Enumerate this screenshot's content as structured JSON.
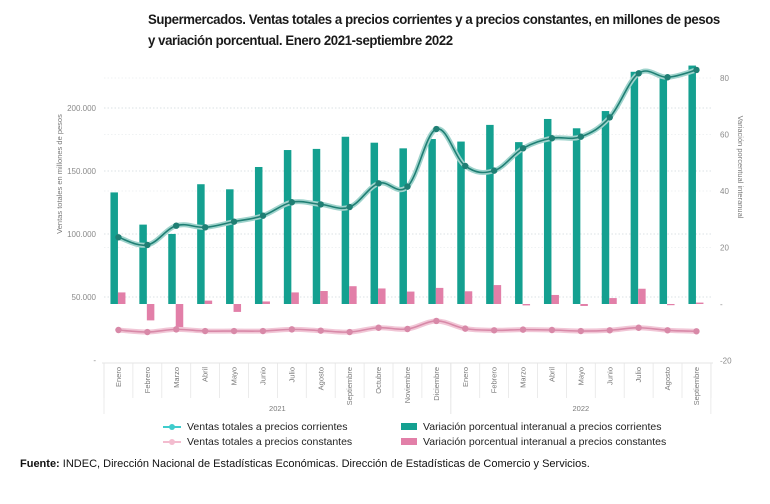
{
  "title": "Supermercados. Ventas totales a precios corrientes y a precios constantes, en millones de pesos y variación porcentual. Enero 2021-septiembre 2022",
  "footer": {
    "label": "Fuente:",
    "text": " INDEC, Dirección Nacional de Estadísticas Económicas. Dirección de Estadísticas de Comercio y Servicios."
  },
  "colors": {
    "bar_corrientes": "#14a090",
    "bar_constantes": "#e27fa8",
    "line_corrientes": "#1f7f74",
    "line_constantes": "#d889a8",
    "legend_line_corrientes": "#3fcccc",
    "legend_line_constantes": "#f3bccf"
  },
  "legend": [
    {
      "label": "Ventas totales a precios corrientes",
      "kind": "line",
      "color_key": "legend_line_corrientes"
    },
    {
      "label": "Ventas totales a precios constantes",
      "kind": "line",
      "color_key": "legend_line_constantes"
    },
    {
      "label": "Variación porcentual interanual a precios corrientes",
      "kind": "bar",
      "color_key": "bar_corrientes"
    },
    {
      "label": "Variación porcentual interanual a precios constantes",
      "kind": "bar",
      "color_key": "bar_constantes"
    }
  ],
  "chart_data": {
    "type": "bar",
    "title": "Supermercados. Ventas totales a precios corrientes y a precios constantes, en millones de pesos y variación porcentual. Enero 2021-septiembre 2022",
    "categories": [
      "Enero",
      "Febrero",
      "Marzo",
      "Abril",
      "Mayo",
      "Junio",
      "Julio",
      "Agosto",
      "Septiembre",
      "Octubre",
      "Noviembre",
      "Diciembre",
      "Enero",
      "Febrero",
      "Marzo",
      "Abril",
      "Mayo",
      "Junio",
      "Julio",
      "Agosto",
      "Septiembre"
    ],
    "groups": [
      {
        "label": "2021",
        "count": 12
      },
      {
        "label": "2022",
        "count": 9
      }
    ],
    "ylabel": "Ventas totales en millones de pesos",
    "ylabel_right": "Variación porcentual interanual",
    "ylim": [
      0,
      230000
    ],
    "ylim_right": [
      -20,
      86
    ],
    "yticks": [
      {
        "value": 0,
        "label": "-"
      },
      {
        "value": 50000,
        "label": "50.000"
      },
      {
        "value": 100000,
        "label": "100.000"
      },
      {
        "value": 150000,
        "label": "150.000"
      },
      {
        "value": 200000,
        "label": "200.000"
      }
    ],
    "yticks_right": [
      {
        "value": -20,
        "label": "-20"
      },
      {
        "value": 0,
        "label": "-"
      },
      {
        "value": 20,
        "label": "20"
      },
      {
        "value": 40,
        "label": "40"
      },
      {
        "value": 60,
        "label": "60"
      },
      {
        "value": 80,
        "label": "80"
      }
    ],
    "grid": true,
    "legend_position": "bottom",
    "series": [
      {
        "name": "Variación porcentual interanual a precios corrientes",
        "type": "bar",
        "axis": "right",
        "values": [
          39.5,
          28.1,
          24.8,
          42.4,
          40.6,
          48.5,
          54.5,
          54.9,
          59.2,
          57.1,
          55.1,
          58.4,
          57.5,
          63.4,
          57.3,
          65.5,
          62.2,
          68.3,
          82.2,
          80.5,
          84.4
        ]
      },
      {
        "name": "Variación porcentual interanual a precios constantes",
        "type": "bar",
        "axis": "right",
        "values": [
          4.1,
          -5.8,
          -8.6,
          1.2,
          -2.8,
          0.9,
          4.1,
          4.6,
          6.3,
          5.5,
          4.4,
          5.7,
          4.5,
          6.7,
          -0.5,
          3.2,
          -0.7,
          2.1,
          5.4,
          -0.4,
          0.5
        ]
      },
      {
        "name": "Ventas totales a precios corrientes",
        "type": "line",
        "axis": "left",
        "values": [
          97400,
          91300,
          106600,
          105300,
          109800,
          114500,
          125200,
          123500,
          121400,
          140200,
          137600,
          183300,
          154000,
          150300,
          168000,
          176000,
          177200,
          192600,
          227500,
          224400,
          230200
        ]
      },
      {
        "name": "Ventas totales a precios constantes",
        "type": "line",
        "axis": "left",
        "values": [
          23800,
          22200,
          24300,
          23000,
          23000,
          23000,
          24300,
          23300,
          22200,
          25600,
          24600,
          31000,
          24900,
          23600,
          24100,
          23800,
          23000,
          23600,
          25600,
          23600,
          22800
        ]
      }
    ]
  }
}
